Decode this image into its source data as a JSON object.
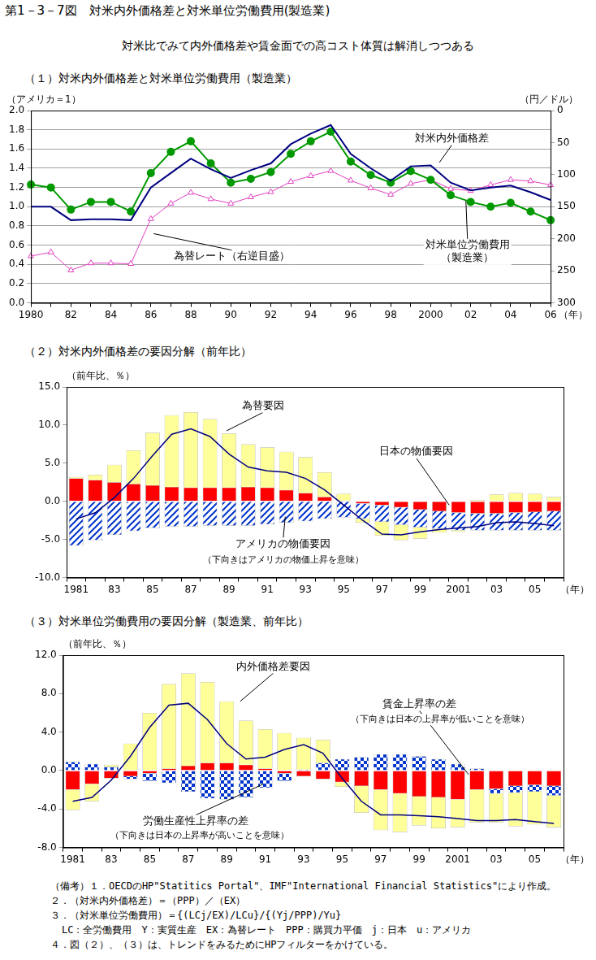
{
  "title": "第1－3－7図　対米内外価格差と対米単位労働費用(製造業)",
  "subtitle": "対米比でみて内外価格差や賃金面での高コスト体質は解消しつつある",
  "chart_data": [
    {
      "type": "line",
      "title": "（１）対米内外価格差と対米単位労働費用（製造業）",
      "ylabel": "（アメリカ＝1）",
      "y2label": "（円／ドル）",
      "xlabel": "（年）",
      "categories": [
        "1980",
        null,
        "82",
        null,
        "84",
        null,
        "86",
        null,
        "88",
        null,
        "90",
        null,
        "92",
        null,
        "94",
        null,
        "96",
        null,
        "98",
        null,
        "2000",
        null,
        "02",
        null,
        "04",
        null,
        "06"
      ],
      "ylim": [
        0,
        2
      ],
      "yticks": [
        {
          "value": 0,
          "label": "0.0"
        },
        {
          "value": 0.2,
          "label": "0.2"
        },
        {
          "value": 0.4,
          "label": "0.4"
        },
        {
          "value": 0.6,
          "label": "0.6"
        },
        {
          "value": 0.8,
          "label": "0.8"
        },
        {
          "value": 1,
          "label": "1.0"
        },
        {
          "value": 1.2,
          "label": "1.2"
        },
        {
          "value": 1.4,
          "label": "1.4"
        },
        {
          "value": 1.6,
          "label": "1.6"
        },
        {
          "value": 1.8,
          "label": "1.8"
        },
        {
          "value": 2,
          "label": "2.0"
        }
      ],
      "y2lim": [
        300,
        0
      ],
      "y2ticks": [
        0,
        50,
        100,
        150,
        200,
        250,
        300
      ],
      "grid": true,
      "series": [
        {
          "name": "対米内外価格差",
          "color": "#000080",
          "marker": "none",
          "values": [
            1.0,
            1.0,
            0.86,
            0.87,
            0.87,
            0.86,
            1.2,
            1.35,
            1.5,
            1.39,
            1.3,
            1.38,
            1.45,
            1.65,
            1.76,
            1.85,
            1.55,
            1.4,
            1.27,
            1.42,
            1.43,
            1.25,
            1.17,
            1.2,
            1.22,
            1.15,
            1.07
          ]
        },
        {
          "name": "対米単位労働費用（製造業）",
          "color": "#009900",
          "marker": "circle",
          "values": [
            1.23,
            1.2,
            0.97,
            1.05,
            1.05,
            0.95,
            1.35,
            1.57,
            1.68,
            1.45,
            1.25,
            1.29,
            1.36,
            1.55,
            1.68,
            1.78,
            1.47,
            1.33,
            1.25,
            1.37,
            1.28,
            1.12,
            1.05,
            1.0,
            1.04,
            0.95,
            0.86
          ]
        },
        {
          "name": "為替レート（右逆目盛）",
          "color": "#e040c0",
          "marker": "triangle",
          "axis": "y2",
          "values": [
            227,
            221,
            249,
            238,
            238,
            239,
            169,
            145,
            128,
            138,
            145,
            135,
            127,
            111,
            102,
            94,
            109,
            121,
            131,
            114,
            108,
            122,
            125,
            116,
            108,
            110,
            116
          ]
        }
      ]
    },
    {
      "type": "bar",
      "title": "（２）対米内外価格差の要因分解（前年比）",
      "ylabel": "（前年比、％）",
      "xlabel": "（年）",
      "stacked": true,
      "grid": false,
      "categories": [
        "1981",
        null,
        "83",
        null,
        "85",
        null,
        "87",
        null,
        "89",
        null,
        "91",
        null,
        "93",
        null,
        "95",
        null,
        "97",
        null,
        "99",
        null,
        "2001",
        null,
        "03",
        null,
        "05",
        null
      ],
      "ylim": [
        -10,
        15
      ],
      "yticks": [
        {
          "value": -10,
          "label": "-10.0"
        },
        {
          "value": -5,
          "label": "-5.0"
        },
        {
          "value": 0,
          "label": "0.0"
        },
        {
          "value": 5,
          "label": "5.0"
        },
        {
          "value": 10,
          "label": "10.0"
        },
        {
          "value": 15,
          "label": "15.0"
        }
      ],
      "series": [
        {
          "name": "日本の物価要因",
          "color": "#ff0000",
          "values": [
            3.0,
            2.8,
            2.5,
            2.3,
            2.1,
            1.9,
            1.8,
            1.8,
            1.8,
            1.9,
            1.8,
            1.5,
            1.1,
            0.6,
            0.1,
            -0.3,
            -0.5,
            -0.8,
            -1.1,
            -1.3,
            -1.5,
            -1.6,
            -1.6,
            -1.5,
            -1.4,
            -1.3
          ]
        },
        {
          "name": "アメリカの物価要因",
          "color": "#0033cc",
          "values": [
            -5.8,
            -5.1,
            -4.4,
            -3.9,
            -3.5,
            -3.3,
            -3.3,
            -3.2,
            -3.2,
            -3.2,
            -3.0,
            -2.8,
            -2.6,
            -2.3,
            -2.1,
            -2.0,
            -2.2,
            -2.3,
            -2.3,
            -2.3,
            -2.3,
            -2.2,
            -2.2,
            -2.3,
            -2.4,
            -2.5
          ]
        },
        {
          "name": "為替要因",
          "color": "#ffff99",
          "values": [
            0.2,
            0.7,
            2.3,
            4.4,
            6.9,
            9.4,
            9.9,
            9.0,
            7.1,
            5.6,
            5.3,
            5.0,
            4.7,
            3.2,
            0.9,
            -0.5,
            -1.8,
            -2.0,
            -1.5,
            -0.5,
            -0.2,
            0.2,
            0.9,
            1.1,
            1.0,
            0.6
          ]
        },
        {
          "type": "line",
          "color": "#000080",
          "marker": "none",
          "values": [
            -2.3,
            -1.5,
            0.5,
            3.0,
            6.0,
            8.8,
            9.5,
            8.5,
            6.2,
            4.5,
            4.0,
            3.8,
            3.0,
            1.5,
            -0.5,
            -2.5,
            -4.3,
            -4.4,
            -4.0,
            -3.7,
            -3.5,
            -3.3,
            -2.8,
            -2.7,
            -2.9,
            -3.2
          ]
        }
      ],
      "annotations": [
        "（下向きはアメリカの物価上昇を意味）"
      ]
    },
    {
      "type": "bar",
      "title": "（３）対米単位労働費用の要因分解（製造業、前年比）",
      "ylabel": "（前年比、％）",
      "xlabel": "（年）",
      "stacked": true,
      "grid": false,
      "categories": [
        "1981",
        null,
        "83",
        null,
        "85",
        null,
        "87",
        null,
        "89",
        null,
        "91",
        null,
        "93",
        null,
        "95",
        null,
        "97",
        null,
        "99",
        null,
        "2001",
        null,
        "03",
        null,
        "05",
        null
      ],
      "ylim": [
        -8,
        12
      ],
      "yticks": [
        {
          "value": -8,
          "label": "-8.0"
        },
        {
          "value": -4,
          "label": "-4.0"
        },
        {
          "value": 0,
          "label": "0.0"
        },
        {
          "value": 4,
          "label": "4.0"
        },
        {
          "value": 8,
          "label": "8.0"
        },
        {
          "value": 12,
          "label": "12.0"
        }
      ],
      "series": [
        {
          "name": "賃金上昇率の差",
          "color": "#ff0000",
          "values": [
            -2.0,
            -1.4,
            -0.8,
            -0.6,
            -0.3,
            0.2,
            0.5,
            0.8,
            0.8,
            0.6,
            0.2,
            -0.3,
            -0.6,
            -0.9,
            -1.2,
            -1.6,
            -2.0,
            -2.4,
            -2.7,
            -2.8,
            -3.0,
            -2.0,
            -1.9,
            -1.6,
            -1.5,
            -1.6
          ]
        },
        {
          "name": "労働生産性上昇率の差",
          "color": "#0033cc",
          "values": [
            0.9,
            0.7,
            0.4,
            -0.3,
            -0.8,
            -1.3,
            -2.2,
            -2.9,
            -3.0,
            -2.8,
            -1.8,
            -0.8,
            0.1,
            0.8,
            1.2,
            1.4,
            1.7,
            1.7,
            1.5,
            1.2,
            0.7,
            0.2,
            -0.5,
            -0.7,
            -0.7,
            -1.0
          ]
        },
        {
          "name": "内外価格差要因",
          "color": "#ffff99",
          "values": [
            -2.1,
            -1.8,
            0.2,
            2.8,
            6.0,
            8.8,
            9.6,
            8.4,
            6.4,
            4.6,
            4.1,
            3.9,
            3.3,
            2.4,
            -0.5,
            -2.8,
            -4.2,
            -4.0,
            -3.0,
            -3.2,
            -2.9,
            -3.4,
            -3.0,
            -3.5,
            -3.4,
            -3.3
          ]
        },
        {
          "type": "line",
          "color": "#000080",
          "marker": "none",
          "values": [
            -3.2,
            -2.8,
            -1.0,
            1.5,
            4.5,
            6.8,
            7.0,
            5.3,
            2.8,
            1.2,
            1.4,
            2.2,
            2.7,
            1.8,
            -0.8,
            -3.2,
            -4.6,
            -4.6,
            -4.7,
            -4.8,
            -5.0,
            -5.2,
            -5.2,
            -5.1,
            -5.3,
            -5.5
          ]
        }
      ],
      "annotations": [
        "（下向きは日本の上昇率が低いことを意味）",
        "（下向きは日本の上昇率が高いことを意味）"
      ]
    }
  ],
  "notes": [
    "（備考）１．OECDのHP\"Statitics Portal\"、IMF\"International Financial Statistics\"により作成。",
    "２．（対米内外価格差）＝（PPP）／（EX）",
    "３．（対米単位労働費用）＝{(LCj/EX)/LCu}/{(Yj/PPP)/Yu}",
    "LC：全労働費用　Y：実質生産　EX：為替レート　PPP：購買力平価　j：日本　u：アメリカ",
    "４．図（２）、（３）は、トレンドをみるためにHPフィルターをかけている。"
  ]
}
